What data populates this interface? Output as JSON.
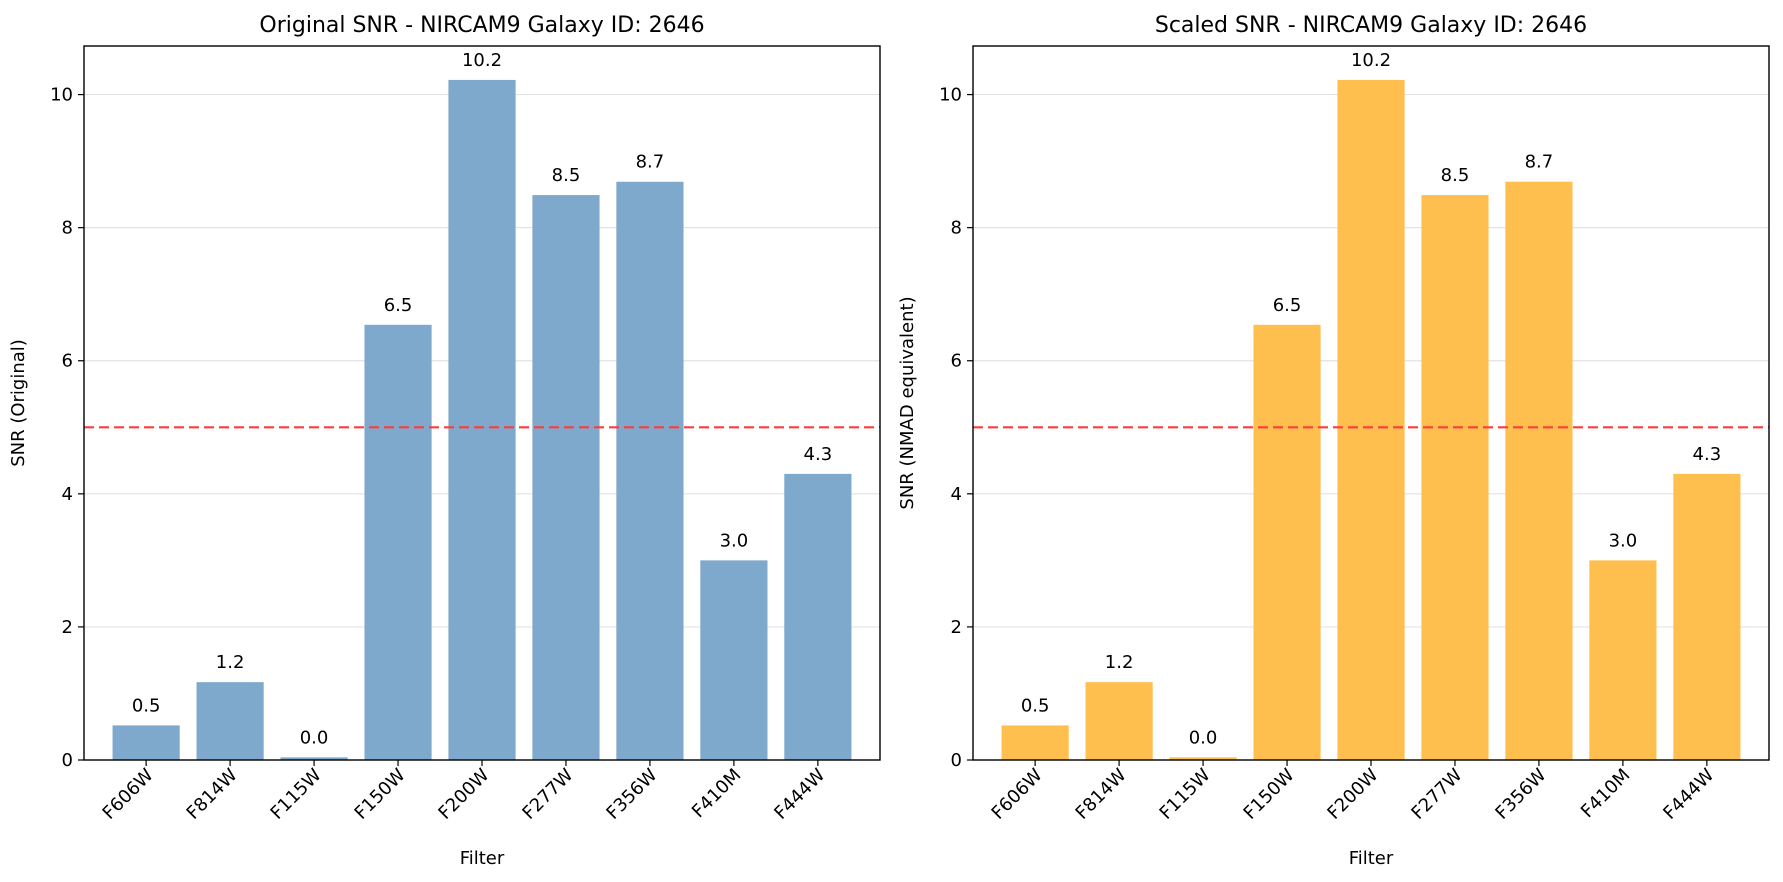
{
  "chart_data": [
    {
      "type": "bar",
      "title": "Original SNR - NIRCAM9 Galaxy ID: 2646",
      "xlabel": "Filter",
      "ylabel": "SNR (Original)",
      "categories": [
        "F606W",
        "F814W",
        "F115W",
        "F150W",
        "F200W",
        "F277W",
        "F356W",
        "F410M",
        "F444W"
      ],
      "values": [
        0.52,
        1.17,
        0.04,
        6.54,
        10.22,
        8.49,
        8.69,
        3.0,
        4.3
      ],
      "value_labels": [
        "0.5",
        "1.2",
        "0.0",
        "6.5",
        "10.2",
        "8.5",
        "8.7",
        "3.0",
        "4.3"
      ],
      "ylim": [
        0,
        10.73
      ],
      "yticks": [
        0,
        2,
        4,
        6,
        8,
        10
      ],
      "threshold": 5,
      "bar_color": "#7fa9cc",
      "threshold_color": "#ff3b3b",
      "grid": "y"
    },
    {
      "type": "bar",
      "title": "Scaled SNR - NIRCAM9 Galaxy ID: 2646",
      "xlabel": "Filter",
      "ylabel": "SNR (NMAD equivalent)",
      "categories": [
        "F606W",
        "F814W",
        "F115W",
        "F150W",
        "F200W",
        "F277W",
        "F356W",
        "F410M",
        "F444W"
      ],
      "values": [
        0.52,
        1.17,
        0.04,
        6.54,
        10.22,
        8.49,
        8.69,
        3.0,
        4.3
      ],
      "value_labels": [
        "0.5",
        "1.2",
        "0.0",
        "6.5",
        "10.2",
        "8.5",
        "8.7",
        "3.0",
        "4.3"
      ],
      "ylim": [
        0,
        10.73
      ],
      "yticks": [
        0,
        2,
        4,
        6,
        8,
        10
      ],
      "threshold": 5,
      "bar_color": "#ffbf4f",
      "threshold_color": "#ff3b3b",
      "grid": "y"
    }
  ]
}
